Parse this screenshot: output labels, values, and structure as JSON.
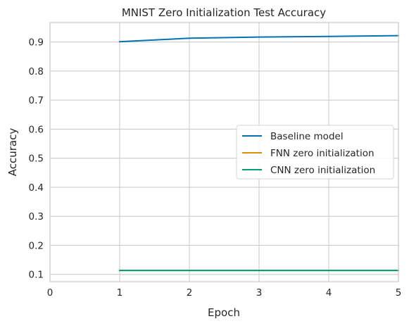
{
  "chart_data": {
    "type": "line",
    "title": "MNIST Zero Initialization Test Accuracy",
    "xlabel": "Epoch",
    "ylabel": "Accuracy",
    "xlim": [
      0,
      5
    ],
    "ylim": [
      0.075,
      0.967
    ],
    "xticks": [
      0,
      1,
      2,
      3,
      4,
      5
    ],
    "yticks": [
      0.1,
      0.2,
      0.3,
      0.4,
      0.5,
      0.6,
      0.7,
      0.8,
      0.9
    ],
    "x": [
      1,
      2,
      3,
      4,
      5
    ],
    "grid": true,
    "legend_position": "center-right",
    "series": [
      {
        "name": "Baseline model",
        "color": "#0173b2",
        "values": [
          0.901,
          0.913,
          0.917,
          0.919,
          0.922
        ]
      },
      {
        "name": "FNN zero initialization",
        "color": "#de8f05",
        "values": [
          0.1135,
          0.1135,
          0.1135,
          0.1135,
          0.1135
        ]
      },
      {
        "name": "CNN zero initialization",
        "color": "#029e73",
        "values": [
          0.1135,
          0.1135,
          0.1135,
          0.1135,
          0.1135
        ]
      }
    ]
  }
}
